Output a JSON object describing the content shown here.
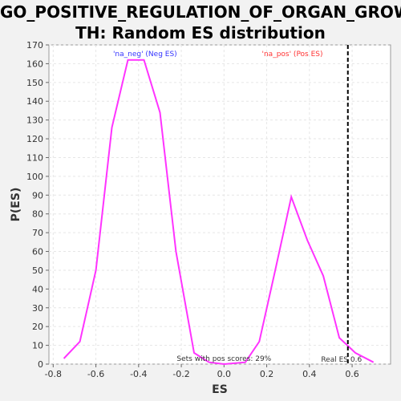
{
  "chart_data": {
    "type": "line",
    "title_line1": "GO_POSITIVE_REGULATION_OF_ORGAN_GROW",
    "title_line2": "TH: Random ES distribution",
    "xlabel": "ES",
    "ylabel": "P(ES)",
    "xlim": [
      -0.82,
      0.78
    ],
    "ylim": [
      0,
      170
    ],
    "xticks": [
      -0.8,
      -0.6,
      -0.4,
      -0.2,
      0.0,
      0.2,
      0.4,
      0.6
    ],
    "xtick_labels": [
      "-0.8",
      "-0.6",
      "-0.4",
      "-0.2",
      "0.0",
      "0.2",
      "0.4",
      "0.6"
    ],
    "yticks": [
      0,
      10,
      20,
      30,
      40,
      50,
      60,
      70,
      80,
      90,
      100,
      110,
      120,
      130,
      140,
      150,
      160,
      170
    ],
    "ytick_labels": [
      "0",
      "10",
      "20",
      "30",
      "40",
      "50",
      "60",
      "70",
      "80",
      "90",
      "100",
      "110",
      "120",
      "130",
      "140",
      "150",
      "160",
      "170"
    ],
    "grid": true,
    "series": [
      {
        "color": "#ff33ff",
        "x": [
          -0.75,
          -0.675,
          -0.6,
          -0.525,
          -0.45,
          -0.375,
          -0.3,
          -0.225,
          -0.14,
          -0.07,
          0.0,
          0.1,
          0.165,
          0.24,
          0.315,
          0.39,
          0.465,
          0.54,
          0.615,
          0.7
        ],
        "y": [
          3,
          12,
          50,
          126,
          162,
          162,
          134,
          60,
          6,
          1,
          0,
          1,
          12,
          50,
          89,
          66,
          47,
          14,
          6,
          1
        ]
      }
    ],
    "real_es": 0.58,
    "real_es_label": "Real ES 0.6",
    "neg_label": "'na_neg' (Neg ES)",
    "neg_color": "#3333ff",
    "pos_label": "'na_pos' (Pos ES)",
    "pos_color": "#ff3333",
    "pos_scores_note": "Sets with pos scores: 29%"
  }
}
